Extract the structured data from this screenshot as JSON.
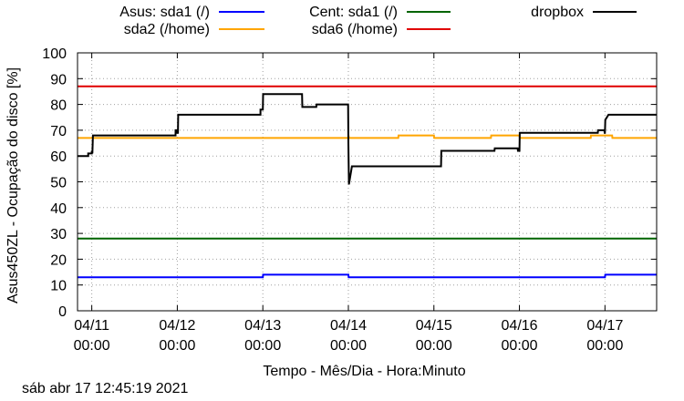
{
  "chart_data": {
    "type": "line",
    "title": "",
    "xlabel": "Tempo - Mês/Dia - Hora:Minuto",
    "ylabel": "Asus450ZL - Ocupação do disco [%]",
    "ylim": [
      0,
      100
    ],
    "yticks": [
      "0",
      "10",
      "20",
      "30",
      "40",
      "50",
      "60",
      "70",
      "80",
      "90",
      "100"
    ],
    "xlim": [
      "04/10 20:00",
      "04/17 14:30"
    ],
    "xticks": [
      {
        "date": "04/11",
        "time": "00:00"
      },
      {
        "date": "04/12",
        "time": "00:00"
      },
      {
        "date": "04/13",
        "time": "00:00"
      },
      {
        "date": "04/14",
        "time": "00:00"
      },
      {
        "date": "04/15",
        "time": "00:00"
      },
      {
        "date": "04/16",
        "time": "00:00"
      },
      {
        "date": "04/17",
        "time": "00:00"
      }
    ],
    "grid": true,
    "legend": "top",
    "series": [
      {
        "name": "Asus: sda1 (/)",
        "color": "#0000ff",
        "points": [
          [
            "04/10 20:00",
            13
          ],
          [
            "04/13 00:00",
            13
          ],
          [
            "04/13 00:05",
            14
          ],
          [
            "04/14 00:00",
            14
          ],
          [
            "04/14 00:05",
            13
          ],
          [
            "04/17 00:00",
            13
          ],
          [
            "04/17 00:05",
            14
          ],
          [
            "04/17 14:30",
            14
          ]
        ]
      },
      {
        "name": "sda2 (/home)",
        "color": "#ffa500",
        "points": [
          [
            "04/10 20:00",
            67
          ],
          [
            "04/14 00:00",
            67
          ],
          [
            "04/14 00:05",
            68
          ],
          [
            "04/14 00:05",
            67
          ],
          [
            "04/14 14:00",
            67
          ],
          [
            "04/14 14:05",
            68
          ],
          [
            "04/15 00:00",
            68
          ],
          [
            "04/15 00:05",
            67
          ],
          [
            "04/15 16:00",
            67
          ],
          [
            "04/15 16:05",
            68
          ],
          [
            "04/16 00:00",
            68
          ],
          [
            "04/16 00:05",
            67
          ],
          [
            "04/16 20:00",
            67
          ],
          [
            "04/16 20:05",
            68
          ],
          [
            "04/17 02:00",
            68
          ],
          [
            "04/17 02:05",
            67
          ],
          [
            "04/17 14:30",
            67
          ]
        ]
      },
      {
        "name": "Cent: sda1 (/)",
        "color": "#006400",
        "points": [
          [
            "04/10 20:00",
            28
          ],
          [
            "04/17 14:30",
            28
          ]
        ]
      },
      {
        "name": "sda6 (/home)",
        "color": "#e00000",
        "points": [
          [
            "04/10 20:00",
            87
          ],
          [
            "04/17 14:30",
            87
          ]
        ]
      },
      {
        "name": "dropbox",
        "color": "#000000",
        "points": [
          [
            "04/10 20:00",
            60
          ],
          [
            "04/10 23:00",
            60
          ],
          [
            "04/10 23:00",
            61
          ],
          [
            "04/11 00:00",
            61
          ],
          [
            "04/11 00:00",
            62
          ],
          [
            "04/11 00:10",
            61
          ],
          [
            "04/11 00:20",
            68
          ],
          [
            "04/11 23:30",
            68
          ],
          [
            "04/11 23:30",
            70
          ],
          [
            "04/11 23:50",
            70
          ],
          [
            "04/11 23:50",
            69
          ],
          [
            "04/12 00:10",
            69
          ],
          [
            "04/12 00:15",
            76
          ],
          [
            "04/12 23:20",
            76
          ],
          [
            "04/12 23:20",
            78
          ],
          [
            "04/12 23:50",
            78
          ],
          [
            "04/12 23:50",
            78
          ],
          [
            "04/13 00:00",
            78
          ],
          [
            "04/13 00:05",
            84
          ],
          [
            "04/13 11:00",
            84
          ],
          [
            "04/13 11:05",
            79
          ],
          [
            "04/13 15:00",
            79
          ],
          [
            "04/13 15:05",
            80
          ],
          [
            "04/13 23:55",
            80
          ],
          [
            "04/14 00:00",
            65
          ],
          [
            "04/14 00:10",
            49
          ],
          [
            "04/14 01:00",
            56
          ],
          [
            "04/14 02:00",
            56
          ],
          [
            "04/15 02:00",
            56
          ],
          [
            "04/15 02:05",
            62
          ],
          [
            "04/15 17:00",
            62
          ],
          [
            "04/15 17:05",
            63
          ],
          [
            "04/15 23:30",
            63
          ],
          [
            "04/15 23:35",
            62
          ],
          [
            "04/16 00:00",
            62
          ],
          [
            "04/16 00:05",
            69
          ],
          [
            "04/16 22:00",
            69
          ],
          [
            "04/16 22:05",
            70
          ],
          [
            "04/16 23:50",
            70
          ],
          [
            "04/16 23:55",
            69
          ],
          [
            "04/17 00:00",
            69
          ],
          [
            "04/17 00:05",
            74
          ],
          [
            "04/17 01:00",
            76
          ],
          [
            "04/17 14:30",
            76
          ]
        ]
      }
    ]
  },
  "footer_timestamp": "sáb abr 17 12:45:19 2021"
}
